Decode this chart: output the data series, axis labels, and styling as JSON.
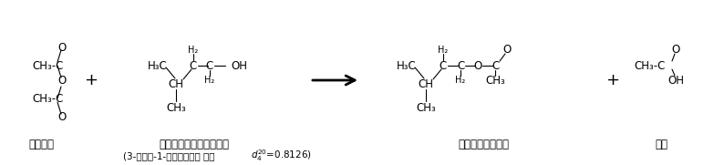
{
  "figsize": [
    7.83,
    1.81
  ],
  "dpi": 100,
  "bg_color": "#ffffff",
  "fs": 8.5,
  "fs_sub": 7.0,
  "fs_label": 8.5,
  "structures": {
    "anhydride_label": "無水酢酸",
    "alcohol_label": "イソペンチルアルコール",
    "product_label": "酢酸イソペンチル",
    "acetic_label": "酢酸",
    "sublabel": "(3-メチル-1-ブタノール， 比重"
  }
}
